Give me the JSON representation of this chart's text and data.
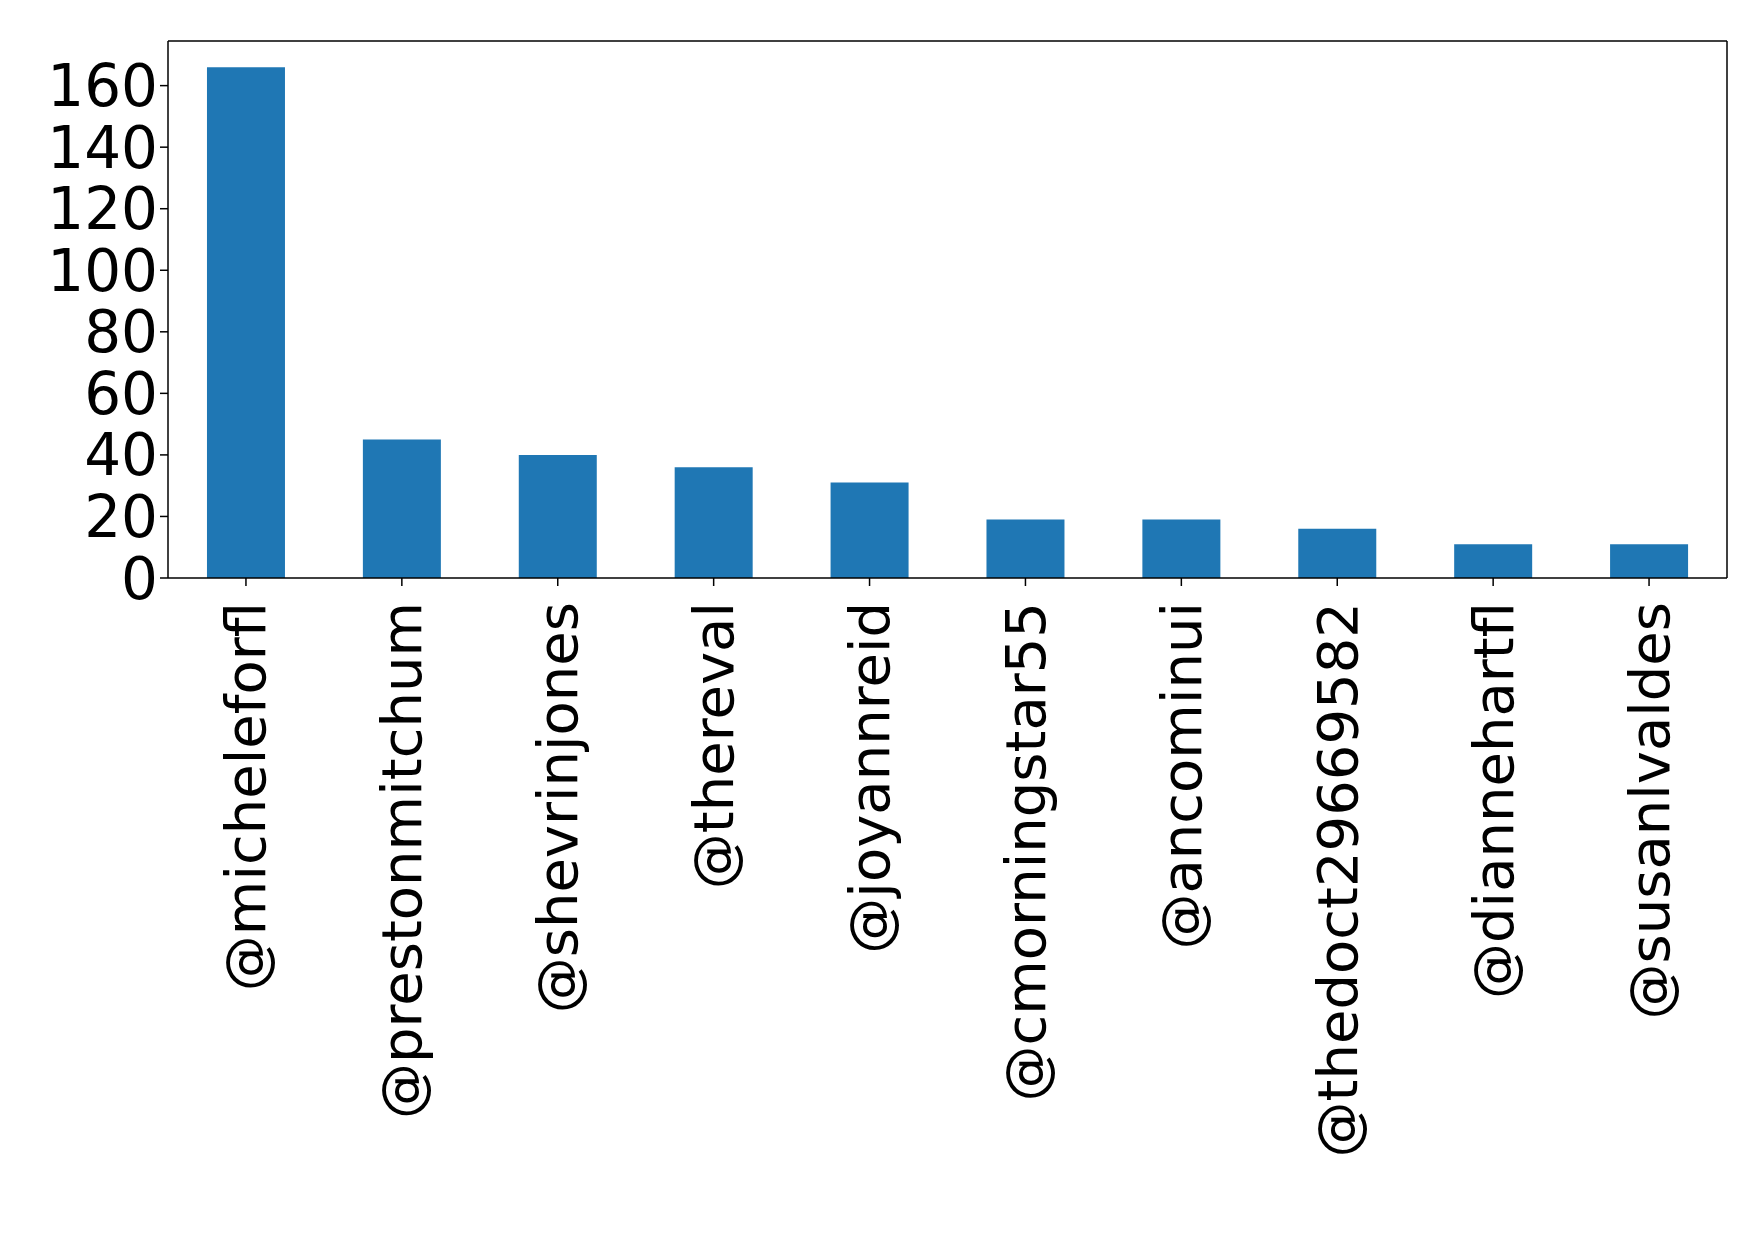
{
  "chart_data": {
    "type": "bar",
    "categories": [
      "@micheleforfl",
      "@prestonmitchum",
      "@shevrinjones",
      "@thereval",
      "@joyannreid",
      "@cmorningstar55",
      "@ancominui",
      "@thedoct29669582",
      "@diannehartfl",
      "@susanlvaldes"
    ],
    "values": [
      166,
      45,
      40,
      36,
      31,
      19,
      19,
      16,
      11,
      11
    ],
    "color": "#1f77b4",
    "ylim": [
      0,
      174.5
    ],
    "yticks": [
      0,
      20,
      40,
      60,
      80,
      100,
      120,
      140,
      160
    ]
  }
}
